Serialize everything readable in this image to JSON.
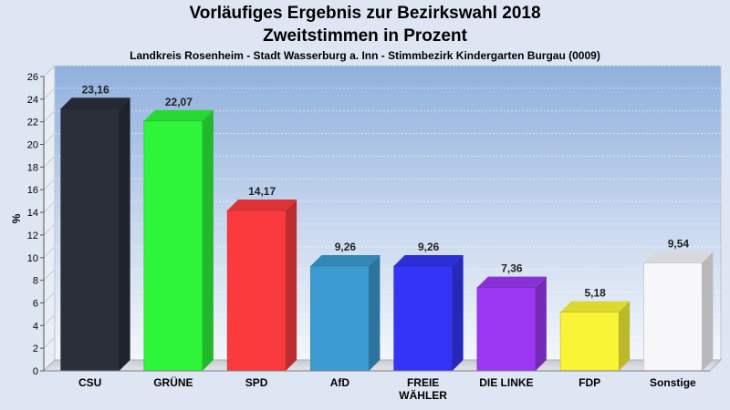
{
  "chart_data": {
    "type": "bar",
    "title": "Vorläufiges Ergebnis zur Bezirkswahl 2018",
    "subtitle": "Zweitstimmen in Prozent",
    "caption": "Landkreis Rosenheim - Stadt Wasserburg a. Inn - Stimmbezirk Kindergarten Burgau (0009)",
    "ylabel": "%",
    "xlabel": "",
    "ylim": [
      0,
      26
    ],
    "yticks": [
      0,
      2,
      4,
      6,
      8,
      10,
      12,
      14,
      16,
      18,
      20,
      22,
      24,
      26
    ],
    "grid": true,
    "categories": [
      "CSU",
      "GRÜNE",
      "SPD",
      "AfD",
      "FREIE WÄHLER",
      "DIE LINKE",
      "FDP",
      "Sonstige"
    ],
    "category_lines": [
      [
        "CSU"
      ],
      [
        "GRÜNE"
      ],
      [
        "SPD"
      ],
      [
        "AfD"
      ],
      [
        "FREIE",
        "WÄHLER"
      ],
      [
        "DIE LINKE"
      ],
      [
        "FDP"
      ],
      [
        "Sonstige"
      ]
    ],
    "values": [
      23.16,
      22.07,
      14.17,
      9.26,
      9.26,
      7.36,
      5.18,
      9.54
    ],
    "value_labels": [
      "23,16",
      "22,07",
      "14,17",
      "9,26",
      "9,26",
      "7,36",
      "5,18",
      "9,54"
    ],
    "colors": [
      "#2b2f3a",
      "#2ef53a",
      "#fb3a3e",
      "#3b9bd1",
      "#3434f6",
      "#9a38f4",
      "#f9f536",
      "#f7f7f9"
    ]
  }
}
